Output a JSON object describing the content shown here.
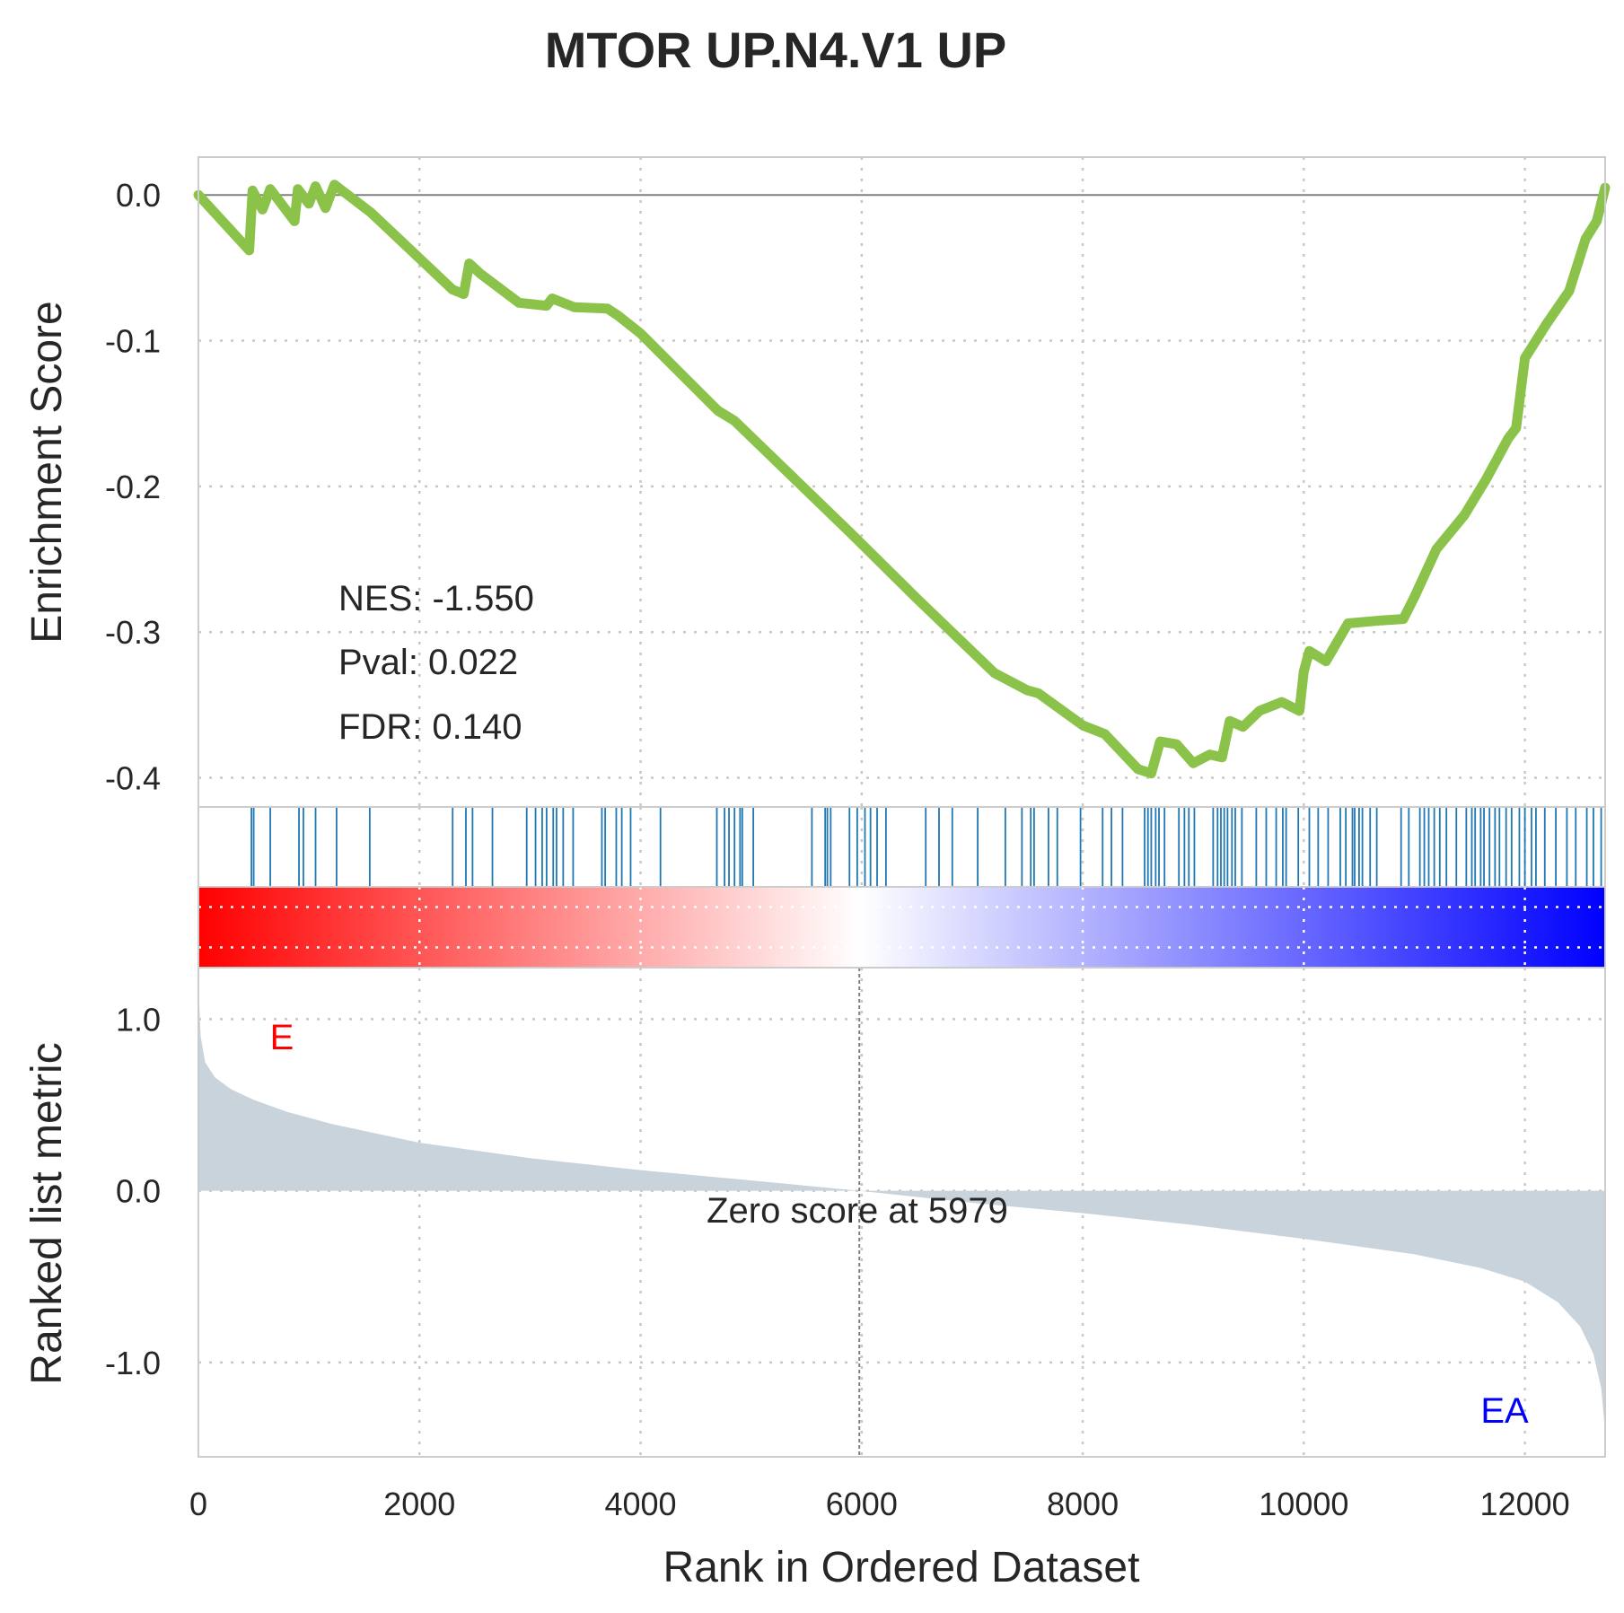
{
  "chart_data": {
    "type": "line",
    "title": "MTOR UP.N4.V1 UP",
    "xlabel": "Rank in Ordered Dataset",
    "xlim": [
      0,
      12726
    ],
    "xticks": [
      "0",
      "2000",
      "4000",
      "6000",
      "8000",
      "10000",
      "12000"
    ],
    "grid": true,
    "colors": {
      "es_line": "#8bc34a",
      "hit": "#1f77b4",
      "metric_fill": "#c8d3dc",
      "pos": "#ff0000",
      "neg": "#0000ff",
      "zero_line": "#808080"
    },
    "enrichment": {
      "ylabel": "Enrichment Score",
      "ylim": [
        -0.42,
        0.026
      ],
      "yticks": [
        "0.0",
        "-0.1",
        "-0.2",
        "-0.3",
        "-0.4"
      ],
      "stats": {
        "nes": "NES: -1.550",
        "pval": "Pval: 0.022",
        "fdr": "FDR: 0.140"
      },
      "points": [
        [
          0,
          0.0
        ],
        [
          460,
          -0.038
        ],
        [
          490,
          0.003
        ],
        [
          580,
          -0.01
        ],
        [
          650,
          0.004
        ],
        [
          870,
          -0.018
        ],
        [
          900,
          0.004
        ],
        [
          1000,
          -0.006
        ],
        [
          1060,
          0.006
        ],
        [
          1150,
          -0.009
        ],
        [
          1230,
          0.007
        ],
        [
          1560,
          -0.012
        ],
        [
          2300,
          -0.065
        ],
        [
          2400,
          -0.068
        ],
        [
          2450,
          -0.047
        ],
        [
          2550,
          -0.054
        ],
        [
          2900,
          -0.074
        ],
        [
          3150,
          -0.076
        ],
        [
          3200,
          -0.071
        ],
        [
          3400,
          -0.077
        ],
        [
          3700,
          -0.078
        ],
        [
          3800,
          -0.083
        ],
        [
          4000,
          -0.095
        ],
        [
          4700,
          -0.148
        ],
        [
          4850,
          -0.155
        ],
        [
          5900,
          -0.232
        ],
        [
          6500,
          -0.277
        ],
        [
          7200,
          -0.328
        ],
        [
          7500,
          -0.34
        ],
        [
          7600,
          -0.342
        ],
        [
          8000,
          -0.364
        ],
        [
          8200,
          -0.37
        ],
        [
          8500,
          -0.394
        ],
        [
          8620,
          -0.397
        ],
        [
          8700,
          -0.375
        ],
        [
          8850,
          -0.377
        ],
        [
          9000,
          -0.39
        ],
        [
          9150,
          -0.384
        ],
        [
          9260,
          -0.386
        ],
        [
          9330,
          -0.361
        ],
        [
          9450,
          -0.365
        ],
        [
          9600,
          -0.354
        ],
        [
          9800,
          -0.348
        ],
        [
          9960,
          -0.354
        ],
        [
          10000,
          -0.327
        ],
        [
          10050,
          -0.313
        ],
        [
          10200,
          -0.32
        ],
        [
          10400,
          -0.294
        ],
        [
          10700,
          -0.292
        ],
        [
          10900,
          -0.291
        ],
        [
          11000,
          -0.276
        ],
        [
          11200,
          -0.243
        ],
        [
          11450,
          -0.22
        ],
        [
          11650,
          -0.195
        ],
        [
          11850,
          -0.167
        ],
        [
          11920,
          -0.16
        ],
        [
          12000,
          -0.112
        ],
        [
          12200,
          -0.088
        ],
        [
          12400,
          -0.066
        ],
        [
          12550,
          -0.03
        ],
        [
          12650,
          -0.018
        ],
        [
          12726,
          0.005
        ]
      ]
    },
    "hits": [
      480,
      500,
      650,
      910,
      950,
      1060,
      1250,
      1550,
      2300,
      2420,
      2480,
      2660,
      2970,
      3050,
      3110,
      3150,
      3210,
      3240,
      3300,
      3390,
      3650,
      3680,
      3780,
      3830,
      3910,
      4180,
      4690,
      4760,
      4800,
      4850,
      4900,
      4920,
      5020,
      5550,
      5670,
      5690,
      5720,
      5890,
      5960,
      6030,
      6080,
      6140,
      6220,
      6580,
      6700,
      6820,
      7050,
      7300,
      7450,
      7530,
      7560,
      7690,
      7770,
      7980,
      8180,
      8260,
      8360,
      8560,
      8590,
      8620,
      8660,
      8690,
      8740,
      8870,
      8920,
      8960,
      9010,
      9180,
      9220,
      9250,
      9280,
      9310,
      9350,
      9380,
      9440,
      9570,
      9660,
      9750,
      9810,
      9840,
      9950,
      10050,
      10130,
      10220,
      10330,
      10380,
      10440,
      10460,
      10500,
      10530,
      10600,
      10660,
      10880,
      10950,
      11050,
      11090,
      11130,
      11180,
      11230,
      11290,
      11380,
      11470,
      11520,
      11550,
      11600,
      11630,
      11680,
      11730,
      11770,
      11830,
      11880,
      11950,
      12000,
      12060,
      12100,
      12180,
      12280,
      12380,
      12460,
      12560,
      12620,
      12690
    ],
    "ranked_metric": {
      "ylabel": "Ranked list metric",
      "ylim": [
        -1.55,
        1.3
      ],
      "yticks": [
        "1.0",
        "0.0",
        "-1.0"
      ],
      "zero_score_label": "Zero score at 5979",
      "zero_score_rank": 5979,
      "pos_label": "E",
      "neg_label": "EA",
      "points": [
        [
          0,
          1.2
        ],
        [
          20,
          0.9
        ],
        [
          60,
          0.75
        ],
        [
          150,
          0.66
        ],
        [
          300,
          0.59
        ],
        [
          500,
          0.53
        ],
        [
          800,
          0.46
        ],
        [
          1200,
          0.39
        ],
        [
          2000,
          0.28
        ],
        [
          3000,
          0.19
        ],
        [
          4000,
          0.12
        ],
        [
          5000,
          0.06
        ],
        [
          5979,
          0.0
        ],
        [
          7000,
          -0.07
        ],
        [
          8000,
          -0.13
        ],
        [
          9000,
          -0.2
        ],
        [
          10000,
          -0.28
        ],
        [
          11000,
          -0.37
        ],
        [
          11600,
          -0.45
        ],
        [
          12000,
          -0.53
        ],
        [
          12300,
          -0.65
        ],
        [
          12500,
          -0.79
        ],
        [
          12620,
          -0.95
        ],
        [
          12690,
          -1.15
        ],
        [
          12726,
          -1.4
        ]
      ]
    }
  }
}
